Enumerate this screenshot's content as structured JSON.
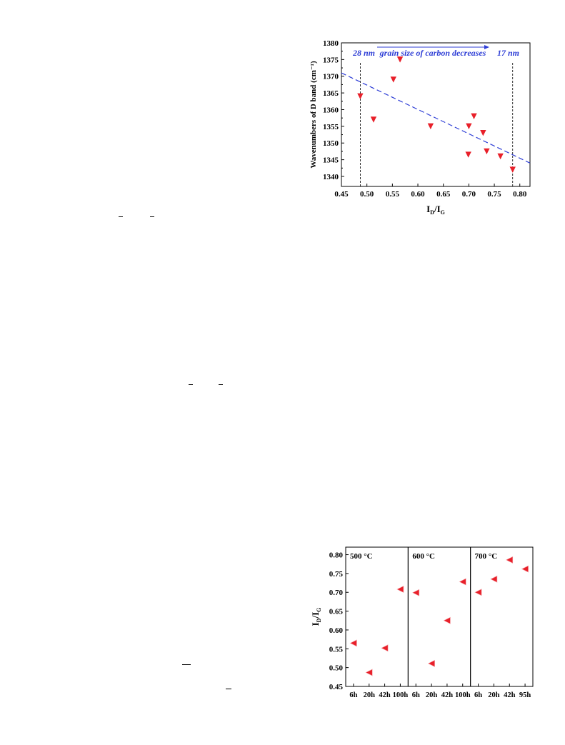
{
  "chart_data": [
    {
      "type": "scatter",
      "title": "",
      "xlabel": "I_D/I_G",
      "ylabel": "Wavenumbers of D band (cm⁻¹)",
      "xlim": [
        0.45,
        0.82
      ],
      "ylim": [
        1337,
        1380
      ],
      "xticks": [
        "0.45",
        "0.50",
        "0.55",
        "0.60",
        "0.65",
        "0.70",
        "0.75",
        "0.80"
      ],
      "yticks": [
        "1340",
        "1345",
        "1350",
        "1355",
        "1360",
        "1365",
        "1370",
        "1375",
        "1380"
      ],
      "marker": "down-triangle",
      "marker_color": "#e8202a",
      "trend_color": "#2f3fd6",
      "trend_line": {
        "style": "dashed",
        "x": [
          0.45,
          0.82
        ],
        "y": [
          1371,
          1344
        ]
      },
      "grain_lines": [
        0.487,
        0.786
      ],
      "points": [
        {
          "x": 0.487,
          "y": 1364
        },
        {
          "x": 0.513,
          "y": 1357
        },
        {
          "x": 0.552,
          "y": 1369
        },
        {
          "x": 0.565,
          "y": 1375
        },
        {
          "x": 0.625,
          "y": 1355
        },
        {
          "x": 0.699,
          "y": 1346.5
        },
        {
          "x": 0.7,
          "y": 1355
        },
        {
          "x": 0.71,
          "y": 1358
        },
        {
          "x": 0.728,
          "y": 1353
        },
        {
          "x": 0.735,
          "y": 1347.5
        },
        {
          "x": 0.762,
          "y": 1346
        },
        {
          "x": 0.786,
          "y": 1342
        }
      ],
      "annotations": {
        "left_size": "28 nm",
        "right_size": "17 nm",
        "arrow_text": "grain size of carbon decreases"
      },
      "grid": false,
      "legend": "none"
    },
    {
      "type": "scatter",
      "title": "",
      "ylabel": "I_D/I_G",
      "ylim": [
        0.45,
        0.82
      ],
      "yticks": [
        "0.45",
        "0.50",
        "0.55",
        "0.60",
        "0.65",
        "0.70",
        "0.75",
        "0.80"
      ],
      "marker": "left-triangle",
      "marker_color": "#e8202a",
      "panels": [
        {
          "label": "500 °C",
          "categories": [
            "6h",
            "20h",
            "42h",
            "100h"
          ],
          "values": [
            0.565,
            0.487,
            0.552,
            0.708
          ]
        },
        {
          "label": "600 °C",
          "categories": [
            "6h",
            "20h",
            "42h",
            "100h"
          ],
          "values": [
            0.699,
            0.511,
            0.625,
            0.728
          ]
        },
        {
          "label": "700 °C",
          "categories": [
            "6h",
            "20h",
            "42h",
            "95h"
          ],
          "values": [
            0.7,
            0.735,
            0.786,
            0.762
          ]
        }
      ],
      "grid": false,
      "legend": "none"
    }
  ]
}
